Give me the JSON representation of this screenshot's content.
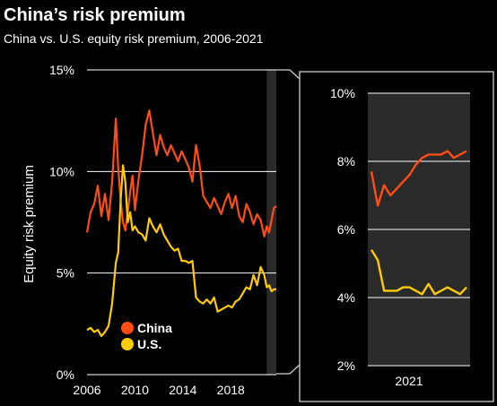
{
  "title": "China’s risk premium",
  "subtitle": "China vs. U.S. equity risk premium, 2006-2021",
  "colors": {
    "china": "#FF4D14",
    "us": "#FFCC00",
    "background": "#000000",
    "grid": "#FFFFFF",
    "highlight": "#2a2a2a"
  },
  "chart_data": [
    {
      "type": "line",
      "ylabel": "Equity risk premium",
      "ylim": [
        0,
        15
      ],
      "xlim": [
        2006,
        2021.8
      ],
      "y_ticks": [
        "0%",
        "5%",
        "10%",
        "15%"
      ],
      "x_ticks": [
        "2006",
        "2010",
        "2014",
        "2018"
      ],
      "legend": [
        "China",
        "U.S."
      ],
      "legend_position": "bottom-center",
      "highlight_range": [
        2021,
        2021.8
      ],
      "series": [
        {
          "name": "China",
          "x": [
            2006.0,
            2006.3,
            2006.6,
            2006.9,
            2007.2,
            2007.5,
            2007.8,
            2008.1,
            2008.4,
            2008.6,
            2008.8,
            2009.0,
            2009.2,
            2009.4,
            2009.6,
            2009.8,
            2010.0,
            2010.3,
            2010.6,
            2010.9,
            2011.2,
            2011.5,
            2011.8,
            2012.1,
            2012.4,
            2012.7,
            2013.0,
            2013.3,
            2013.6,
            2013.9,
            2014.2,
            2014.5,
            2014.8,
            2015.1,
            2015.4,
            2015.7,
            2016.0,
            2016.3,
            2016.6,
            2016.9,
            2017.2,
            2017.5,
            2017.8,
            2018.1,
            2018.4,
            2018.7,
            2019.0,
            2019.3,
            2019.6,
            2019.9,
            2020.2,
            2020.5,
            2020.8,
            2021.0,
            2021.2,
            2021.4,
            2021.6,
            2021.8
          ],
          "values": [
            7.0,
            8.0,
            8.4,
            9.3,
            7.8,
            8.9,
            7.6,
            9.5,
            12.6,
            10.2,
            8.6,
            7.5,
            7.1,
            8.0,
            9.0,
            9.8,
            8.1,
            9.6,
            10.8,
            12.3,
            13.0,
            11.9,
            10.8,
            11.8,
            11.2,
            10.8,
            11.3,
            10.9,
            10.5,
            11.0,
            10.6,
            10.2,
            9.5,
            11.3,
            10.3,
            8.8,
            8.5,
            8.2,
            8.7,
            8.3,
            7.9,
            8.5,
            8.9,
            8.2,
            8.8,
            7.8,
            7.5,
            8.4,
            8.0,
            7.4,
            7.9,
            7.6,
            6.8,
            7.3,
            7.0,
            7.6,
            8.2,
            8.3
          ]
        },
        {
          "name": "U.S.",
          "x": [
            2006.0,
            2006.3,
            2006.6,
            2006.9,
            2007.2,
            2007.5,
            2007.8,
            2008.1,
            2008.4,
            2008.6,
            2008.8,
            2009.0,
            2009.2,
            2009.4,
            2009.6,
            2009.8,
            2010.0,
            2010.3,
            2010.6,
            2010.9,
            2011.2,
            2011.5,
            2011.8,
            2012.1,
            2012.4,
            2012.7,
            2013.0,
            2013.3,
            2013.6,
            2013.9,
            2014.2,
            2014.5,
            2014.8,
            2015.1,
            2015.4,
            2015.7,
            2016.0,
            2016.3,
            2016.6,
            2016.9,
            2017.2,
            2017.5,
            2017.8,
            2018.1,
            2018.4,
            2018.7,
            2019.0,
            2019.3,
            2019.6,
            2019.9,
            2020.2,
            2020.5,
            2020.8,
            2021.0,
            2021.2,
            2021.4,
            2021.6,
            2021.8
          ],
          "values": [
            2.2,
            2.3,
            2.1,
            2.2,
            1.9,
            2.1,
            2.4,
            3.5,
            5.5,
            6.0,
            8.5,
            10.3,
            9.5,
            7.5,
            8.0,
            7.1,
            7.3,
            7.0,
            6.9,
            6.6,
            7.7,
            7.3,
            7.0,
            7.4,
            6.9,
            6.6,
            6.3,
            6.1,
            6.2,
            5.6,
            5.6,
            5.5,
            5.6,
            3.8,
            3.6,
            3.5,
            3.7,
            3.5,
            3.8,
            3.1,
            3.2,
            3.3,
            3.4,
            3.3,
            3.6,
            3.7,
            4.0,
            4.3,
            4.2,
            4.9,
            4.4,
            5.3,
            4.9,
            4.3,
            4.4,
            4.1,
            4.2,
            4.2
          ]
        }
      ]
    },
    {
      "type": "line",
      "title": "",
      "ylim": [
        2,
        10
      ],
      "y_ticks": [
        "2%",
        "4%",
        "6%",
        "8%",
        "10%"
      ],
      "x_ticks": [
        "2021"
      ],
      "series": [
        {
          "name": "China",
          "x": [
            1,
            2,
            3,
            4,
            5,
            6,
            7,
            8,
            9,
            10,
            11,
            12,
            13,
            14,
            15,
            16
          ],
          "values": [
            7.7,
            6.7,
            7.3,
            7.0,
            7.2,
            7.4,
            7.6,
            7.9,
            8.1,
            8.2,
            8.2,
            8.2,
            8.3,
            8.1,
            8.2,
            8.3
          ]
        },
        {
          "name": "U.S.",
          "x": [
            1,
            2,
            3,
            4,
            5,
            6,
            7,
            8,
            9,
            10,
            11,
            12,
            13,
            14,
            15,
            16
          ],
          "values": [
            5.4,
            5.1,
            4.2,
            4.2,
            4.2,
            4.3,
            4.3,
            4.2,
            4.1,
            4.4,
            4.1,
            4.2,
            4.3,
            4.2,
            4.1,
            4.3
          ]
        }
      ]
    }
  ]
}
